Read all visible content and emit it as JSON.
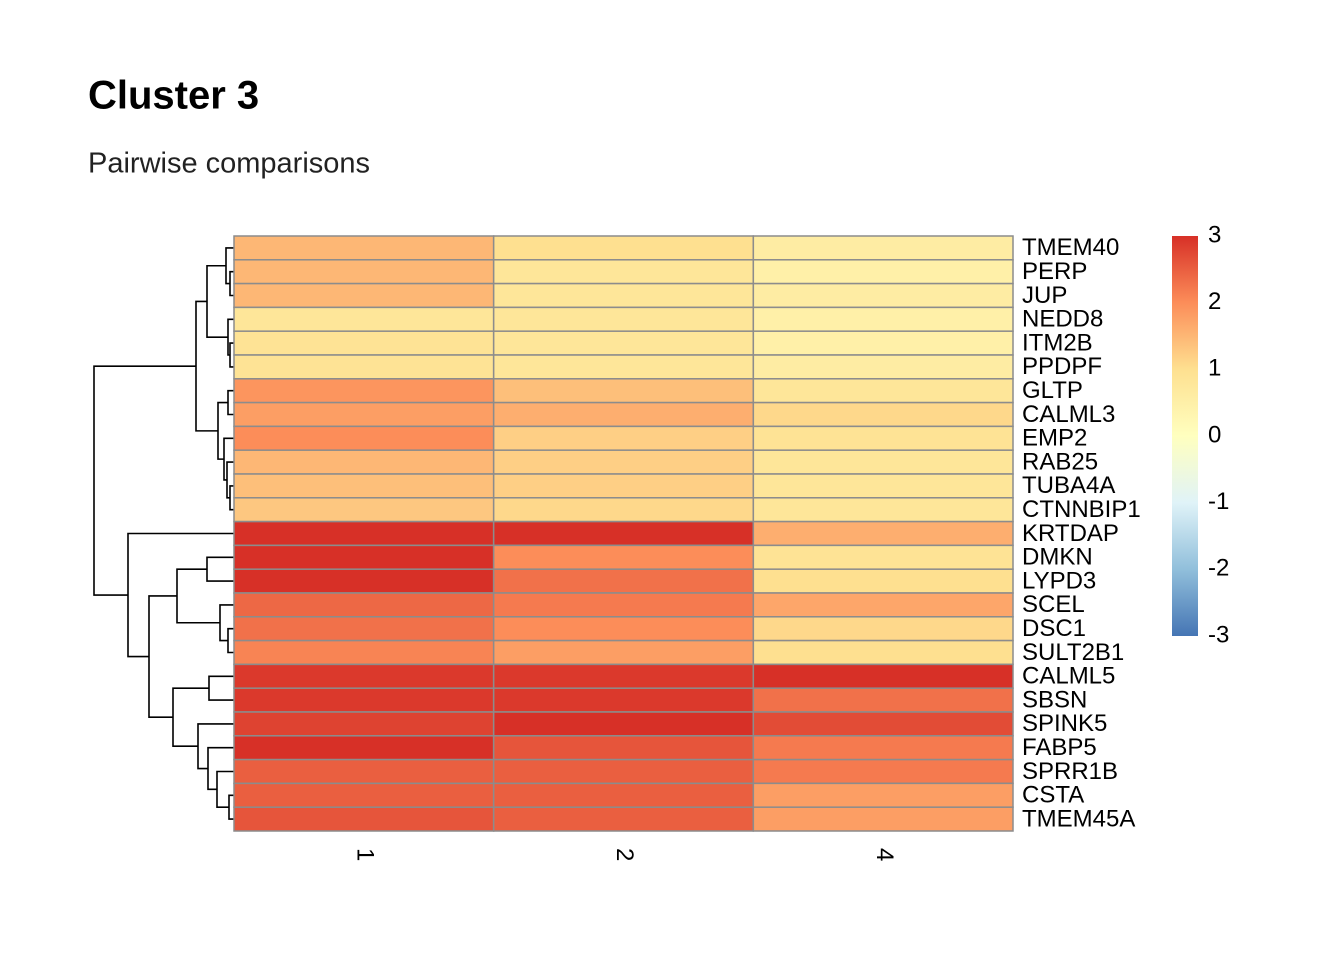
{
  "chart_data": {
    "type": "heatmap",
    "title": "Cluster 3",
    "subtitle": "Pairwise comparisons",
    "categories": [
      "1",
      "2",
      "4"
    ],
    "rows": [
      "TMEM40",
      "PERP",
      "JUP",
      "NEDD8",
      "ITM2B",
      "PPDPF",
      "GLTP",
      "CALML3",
      "EMP2",
      "RAB25",
      "TUBA4A",
      "CTNNBIP1",
      "KRTDAP",
      "DMKN",
      "LYPD3",
      "SCEL",
      "DSC1",
      "SULT2B1",
      "CALML5",
      "SBSN",
      "SPINK5",
      "FABP5",
      "SPRR1B",
      "CSTA",
      "TMEM45A"
    ],
    "values": [
      [
        1.5,
        1.0,
        0.6
      ],
      [
        1.5,
        0.8,
        0.5
      ],
      [
        1.5,
        0.8,
        0.6
      ],
      [
        0.8,
        0.8,
        0.5
      ],
      [
        0.9,
        0.8,
        0.5
      ],
      [
        0.9,
        0.8,
        0.6
      ],
      [
        1.9,
        1.4,
        0.8
      ],
      [
        1.8,
        1.6,
        1.1
      ],
      [
        2.0,
        1.2,
        0.9
      ],
      [
        1.5,
        1.2,
        0.8
      ],
      [
        1.4,
        1.2,
        0.8
      ],
      [
        1.3,
        1.1,
        0.8
      ],
      [
        3.0,
        3.0,
        1.6
      ],
      [
        3.0,
        2.0,
        0.9
      ],
      [
        3.0,
        2.3,
        1.0
      ],
      [
        2.4,
        2.2,
        1.7
      ],
      [
        2.3,
        2.0,
        1.1
      ],
      [
        2.1,
        1.8,
        1.0
      ],
      [
        2.9,
        2.9,
        3.0
      ],
      [
        2.9,
        2.9,
        2.3
      ],
      [
        2.8,
        3.0,
        2.7
      ],
      [
        3.0,
        2.6,
        2.2
      ],
      [
        2.5,
        2.5,
        2.2
      ],
      [
        2.5,
        2.5,
        1.8
      ],
      [
        2.6,
        2.5,
        1.8
      ]
    ],
    "colorscale": [
      "#4575b4",
      "#91bfdb",
      "#e0f3f8",
      "#ffffbf",
      "#fee090",
      "#fc8d59",
      "#d73027"
    ],
    "zlim": [
      -3,
      3
    ],
    "zticks": [
      3,
      2,
      1,
      0,
      -1,
      -2,
      -3
    ]
  }
}
